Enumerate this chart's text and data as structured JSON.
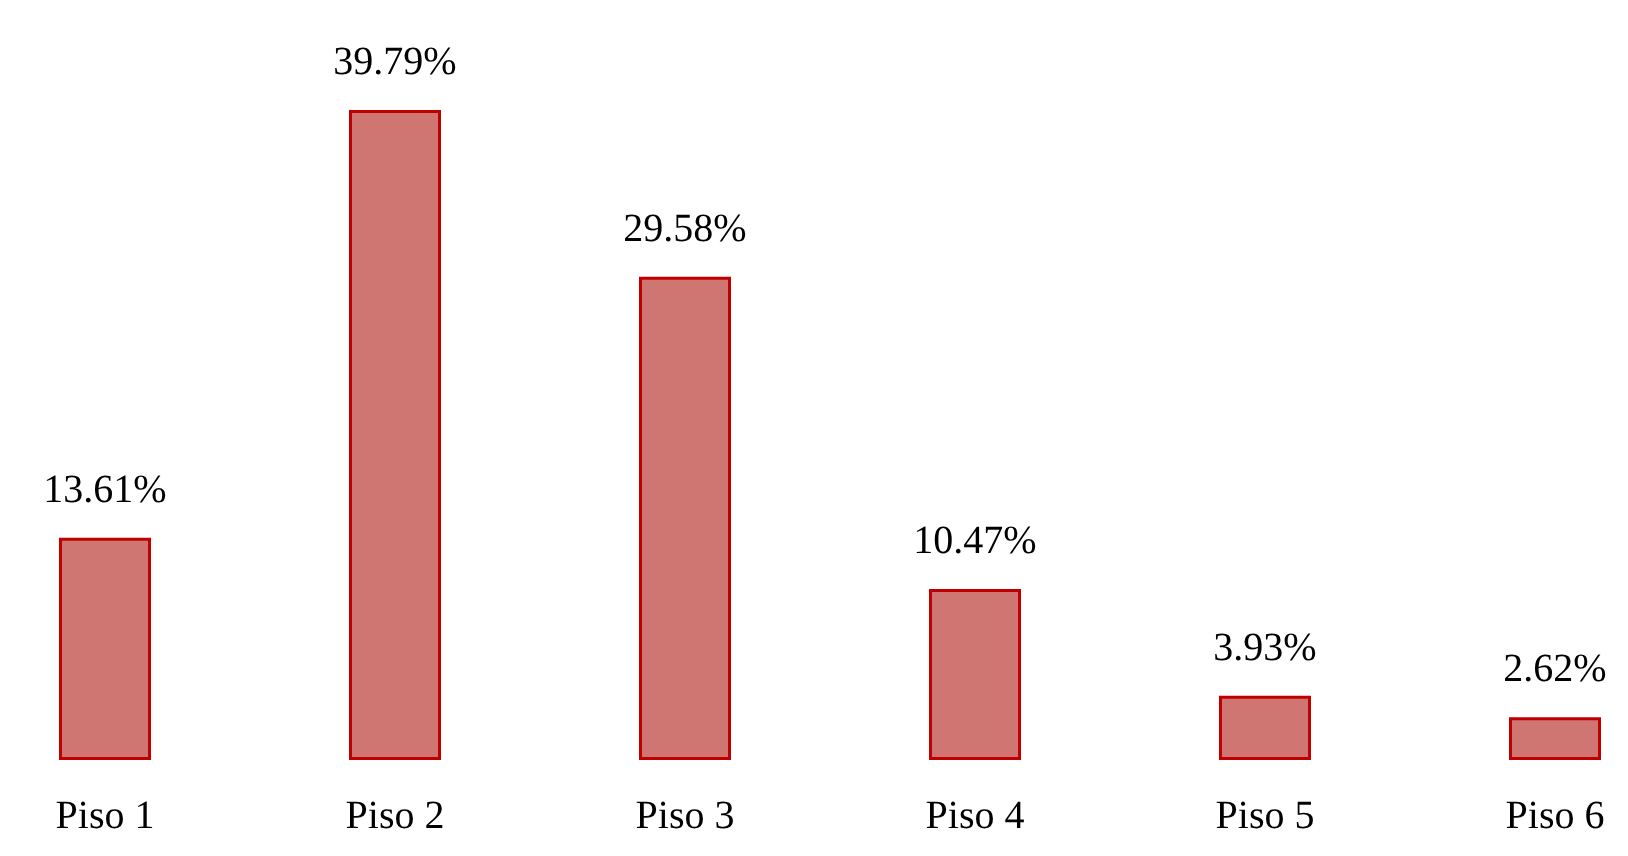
{
  "chart_data": {
    "type": "bar",
    "categories": [
      "Piso 1",
      "Piso 2",
      "Piso 3",
      "Piso 4",
      "Piso 5",
      "Piso 6"
    ],
    "values": [
      13.61,
      39.79,
      29.58,
      10.47,
      3.93,
      2.62
    ],
    "value_labels": [
      "13.61%",
      "39.79%",
      "29.58%",
      "10.47%",
      "3.93%",
      "2.62%"
    ],
    "color": "#d07672",
    "grid": false
  }
}
